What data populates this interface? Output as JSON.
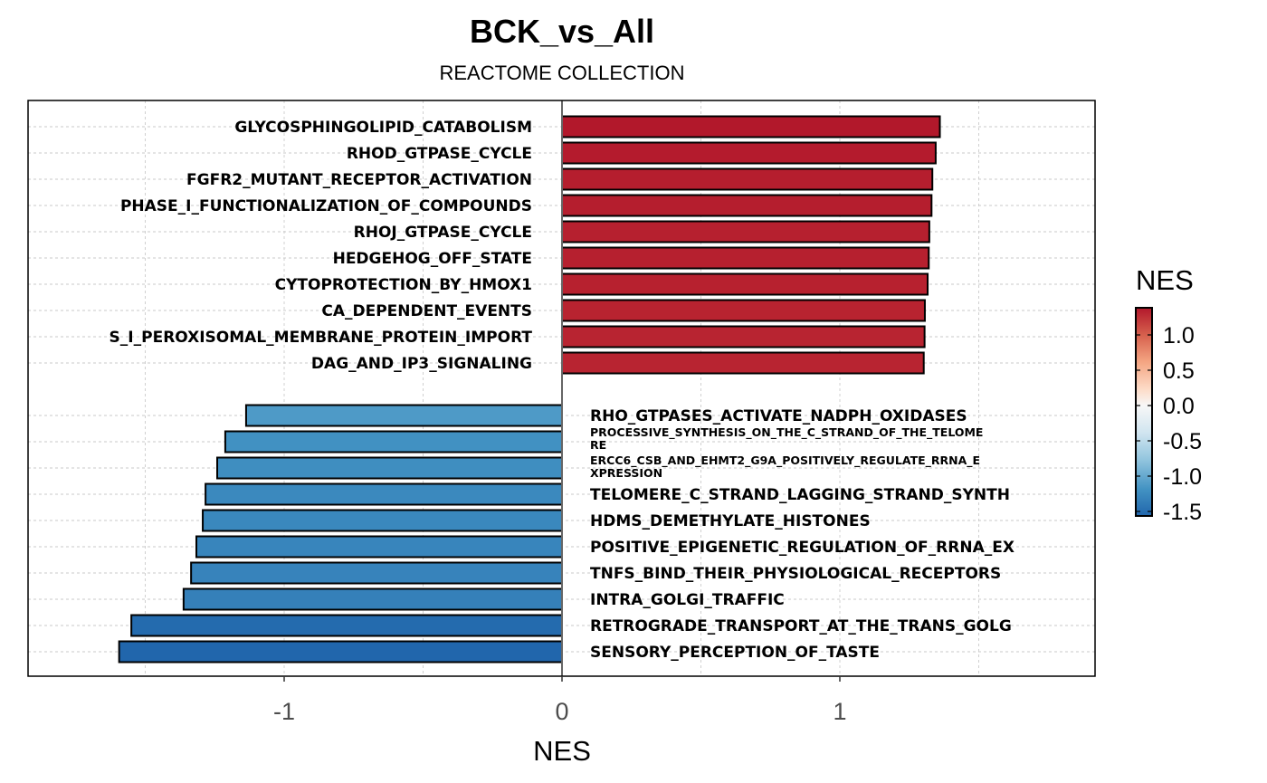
{
  "chart_data": {
    "type": "bar",
    "orientation": "horizontal",
    "title": "BCK_vs_All",
    "subtitle": "REACTOME COLLECTION",
    "xlabel": "NES",
    "ylabel": "",
    "xlim": [
      -1.92,
      1.92
    ],
    "xticks": [
      -1,
      0,
      1
    ],
    "xtick_labels": [
      "-1",
      "0",
      "1"
    ],
    "grid": true,
    "legend": {
      "title": "NES",
      "position": "right",
      "type": "colorbar",
      "ticks": [
        1.0,
        0.5,
        0.0,
        -0.5,
        -1.0,
        -1.5
      ],
      "tick_labels": [
        "1.0",
        "0.5",
        "0.0",
        "-0.5",
        "-1.0",
        "-1.5"
      ],
      "range": [
        -1.59,
        1.36
      ],
      "low_color": "#2166AC",
      "mid_color": "#F7F7F7",
      "high_color": "#B2182B"
    },
    "bars": [
      {
        "label": "GLYCOSPHINGOLIPID_CATABOLISM",
        "value": 1.36
      },
      {
        "label": "RHOD_GTPASE_CYCLE",
        "value": 1.345
      },
      {
        "label": "FGFR2_MUTANT_RECEPTOR_ACTIVATION",
        "value": 1.333
      },
      {
        "label": "PHASE_I_FUNCTIONALIZATION_OF_COMPOUNDS",
        "value": 1.33
      },
      {
        "label": "RHOJ_GTPASE_CYCLE",
        "value": 1.322
      },
      {
        "label": "HEDGEHOG_OFF_STATE",
        "value": 1.32
      },
      {
        "label": "CYTOPROTECTION_BY_HMOX1",
        "value": 1.316
      },
      {
        "label": "CA_DEPENDENT_EVENTS",
        "value": 1.306
      },
      {
        "label": "S_I_PEROXISOMAL_MEMBRANE_PROTEIN_IMPORT",
        "value": 1.305
      },
      {
        "label": "DAG_AND_IP3_SIGNALING",
        "value": 1.302
      },
      {
        "label": "RHO_GTPASES_ACTIVATE_NADPH_OXIDASES",
        "value": -1.137
      },
      {
        "label": "PROCESSIVE_SYNTHESIS_ON_THE_C_STRAND_OF_THE_TELOME|RE",
        "value": -1.212
      },
      {
        "label": "ERCC6_CSB_AND_EHMT2_G9A_POSITIVELY_REGULATE_RRNA_E|XPRESSION",
        "value": -1.241
      },
      {
        "label": "TELOMERE_C_STRAND_LAGGING_STRAND_SYNTH",
        "value": -1.283
      },
      {
        "label": "HDMS_DEMETHYLATE_HISTONES",
        "value": -1.293
      },
      {
        "label": "POSITIVE_EPIGENETIC_REGULATION_OF_RRNA_EX",
        "value": -1.316
      },
      {
        "label": "TNFS_BIND_THEIR_PHYSIOLOGICAL_RECEPTORS",
        "value": -1.335
      },
      {
        "label": "INTRA_GOLGI_TRAFFIC",
        "value": -1.362
      },
      {
        "label": "RETROGRADE_TRANSPORT_AT_THE_TRANS_GOLG",
        "value": -1.55
      },
      {
        "label": "SENSORY_PERCEPTION_OF_TASTE",
        "value": -1.594
      }
    ]
  }
}
